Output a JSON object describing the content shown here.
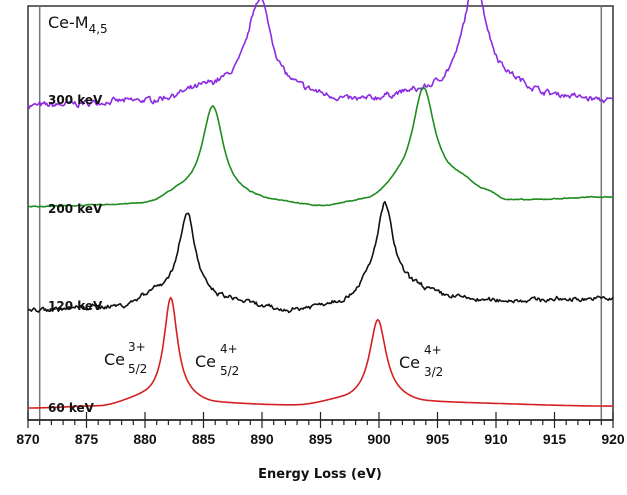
{
  "chart_data": {
    "type": "line",
    "title": "Ce-M",
    "title_subscript": "4,5",
    "xlabel": "Energy Loss (eV)",
    "ylabel": "",
    "xlim": [
      870,
      920
    ],
    "x_ticks": [
      870,
      875,
      880,
      885,
      890,
      895,
      900,
      905,
      910,
      915,
      920
    ],
    "x_tick_labels": [
      "870",
      "875",
      "880",
      "885",
      "890",
      "895",
      "900",
      "905",
      "910",
      "915",
      "920"
    ],
    "minor_tick_step": 1,
    "grid": false,
    "reference_lines_x": [
      871,
      919
    ],
    "y_units": "arbitrary intensity (stacked, offset)",
    "series": [
      {
        "name": "300 keV",
        "color": "#8b2be2",
        "offset": 3.15,
        "noise": 0.025,
        "peaks": [
          {
            "center": 889.8,
            "height": 0.98,
            "width": 1.4
          },
          {
            "center": 908.2,
            "height": 1.12,
            "width": 1.4
          }
        ],
        "baseline": [
          [
            870,
            0.0
          ],
          [
            880,
            0.05
          ],
          [
            886,
            0.18
          ],
          [
            893,
            0.12
          ],
          [
            898,
            0.05
          ],
          [
            903,
            0.12
          ],
          [
            911,
            0.2
          ],
          [
            915,
            0.1
          ],
          [
            920,
            0.05
          ]
        ]
      },
      {
        "name": "200 keV",
        "color": "#1f8c1f",
        "offset": 2.1,
        "noise": 0.004,
        "peaks": [
          {
            "center": 885.8,
            "height": 0.95,
            "width": 1.25
          },
          {
            "center": 903.8,
            "height": 1.02,
            "width": 1.3
          }
        ],
        "baseline": [
          [
            870,
            0.0
          ],
          [
            880,
            0.02
          ],
          [
            883,
            0.12
          ],
          [
            888,
            0.08
          ],
          [
            891,
            0.05
          ],
          [
            895,
            0.0
          ],
          [
            899,
            0.05
          ],
          [
            902,
            0.2
          ],
          [
            907,
            0.25
          ],
          [
            909,
            0.15
          ],
          [
            911,
            0.06
          ],
          [
            920,
            0.1
          ]
        ]
      },
      {
        "name": "120 keV",
        "color": "#111111",
        "offset": 1.02,
        "noise": 0.02,
        "peaks": [
          {
            "center": 883.6,
            "height": 0.88,
            "width": 0.95
          },
          {
            "center": 900.5,
            "height": 0.9,
            "width": 1.0
          }
        ],
        "baseline": [
          [
            870,
            0.0
          ],
          [
            878,
            0.04
          ],
          [
            881,
            0.18
          ],
          [
            887,
            0.1
          ],
          [
            892,
            0.0
          ],
          [
            897,
            0.08
          ],
          [
            899,
            0.2
          ],
          [
            903,
            0.22
          ],
          [
            906,
            0.14
          ],
          [
            909,
            0.1
          ],
          [
            920,
            0.12
          ]
        ]
      },
      {
        "name": "60 keV",
        "color": "#d42020",
        "offset": 0.0,
        "noise": 0.0,
        "peaks": [
          {
            "center": 882.2,
            "height": 1.05,
            "width": 0.8
          },
          {
            "center": 899.9,
            "height": 0.8,
            "width": 0.95
          }
        ],
        "baseline": [
          [
            870,
            0.0
          ],
          [
            876,
            0.02
          ],
          [
            880,
            0.1
          ],
          [
            883,
            0.1
          ],
          [
            886,
            0.05
          ],
          [
            893,
            0.03
          ],
          [
            897,
            0.08
          ],
          [
            900,
            0.12
          ],
          [
            904,
            0.06
          ],
          [
            920,
            0.02
          ]
        ]
      }
    ],
    "annotations": [
      {
        "base": "Ce",
        "sup": "3+",
        "sub": "5/2"
      },
      {
        "base": "Ce",
        "sup": "4+",
        "sub": "5/2"
      },
      {
        "base": "Ce",
        "sup": "4+",
        "sub": "3/2"
      }
    ]
  }
}
